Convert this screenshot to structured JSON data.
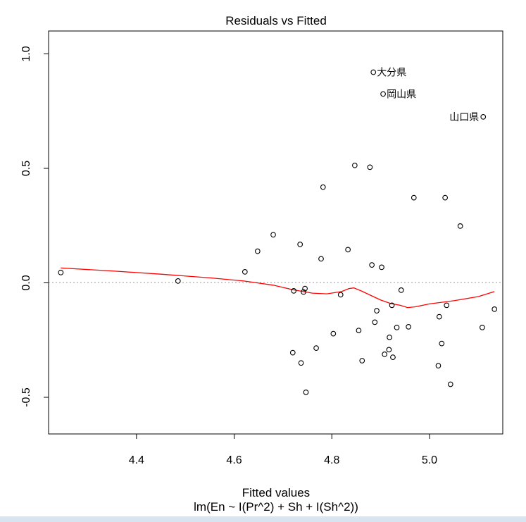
{
  "chart_data": {
    "type": "scatter",
    "title": "Residuals vs Fitted",
    "xlabel": "Fitted values",
    "subtitle": "lm(En ~ I(Pr^2) + Sh + I(Sh^2))",
    "ylabel": "",
    "xlim": [
      4.22,
      5.15
    ],
    "ylim": [
      -0.66,
      1.1
    ],
    "x_ticks": [
      "4.4",
      "4.6",
      "4.8",
      "5.0"
    ],
    "y_ticks": [
      "-0.5",
      "0.0",
      "0.5",
      "1.0"
    ],
    "reference_line": {
      "y": 0,
      "style": "dotted",
      "color": "#999999"
    },
    "point_color": "#000000",
    "smooth_color": "#ff0000",
    "points": [
      {
        "x": 4.245,
        "y": 0.045
      },
      {
        "x": 4.485,
        "y": 0.008
      },
      {
        "x": 4.622,
        "y": 0.048
      },
      {
        "x": 4.648,
        "y": 0.138
      },
      {
        "x": 4.68,
        "y": 0.21
      },
      {
        "x": 4.72,
        "y": -0.305
      },
      {
        "x": 4.722,
        "y": -0.035
      },
      {
        "x": 4.735,
        "y": 0.168
      },
      {
        "x": 4.737,
        "y": -0.35
      },
      {
        "x": 4.742,
        "y": -0.04
      },
      {
        "x": 4.745,
        "y": -0.025
      },
      {
        "x": 4.747,
        "y": -0.478
      },
      {
        "x": 4.768,
        "y": -0.285
      },
      {
        "x": 4.778,
        "y": 0.105
      },
      {
        "x": 4.782,
        "y": 0.418
      },
      {
        "x": 4.803,
        "y": -0.222
      },
      {
        "x": 4.818,
        "y": -0.052
      },
      {
        "x": 4.833,
        "y": 0.145
      },
      {
        "x": 4.847,
        "y": 0.513
      },
      {
        "x": 4.855,
        "y": -0.208
      },
      {
        "x": 4.862,
        "y": -0.34
      },
      {
        "x": 4.878,
        "y": 0.505
      },
      {
        "x": 4.882,
        "y": 0.078
      },
      {
        "x": 4.885,
        "y": 0.92,
        "label": "大分県",
        "label_side": "right"
      },
      {
        "x": 4.888,
        "y": -0.172
      },
      {
        "x": 4.892,
        "y": -0.122
      },
      {
        "x": 4.902,
        "y": 0.068
      },
      {
        "x": 4.905,
        "y": 0.825,
        "label": "岡山県",
        "label_side": "right"
      },
      {
        "x": 4.908,
        "y": -0.312
      },
      {
        "x": 4.917,
        "y": -0.292
      },
      {
        "x": 4.918,
        "y": -0.238
      },
      {
        "x": 4.923,
        "y": -0.098
      },
      {
        "x": 4.925,
        "y": -0.325
      },
      {
        "x": 4.933,
        "y": -0.195
      },
      {
        "x": 4.942,
        "y": -0.032
      },
      {
        "x": 4.957,
        "y": -0.192
      },
      {
        "x": 4.968,
        "y": 0.372
      },
      {
        "x": 5.018,
        "y": -0.362
      },
      {
        "x": 5.02,
        "y": -0.148
      },
      {
        "x": 5.025,
        "y": -0.265
      },
      {
        "x": 5.032,
        "y": 0.372
      },
      {
        "x": 5.035,
        "y": -0.098
      },
      {
        "x": 5.043,
        "y": -0.443
      },
      {
        "x": 5.063,
        "y": 0.248
      },
      {
        "x": 5.108,
        "y": -0.195
      },
      {
        "x": 5.11,
        "y": 0.725,
        "label": "山口県",
        "label_side": "left"
      },
      {
        "x": 5.133,
        "y": -0.115
      }
    ],
    "smooth_line": [
      [
        4.245,
        0.065
      ],
      [
        4.35,
        0.052
      ],
      [
        4.45,
        0.038
      ],
      [
        4.55,
        0.022
      ],
      [
        4.62,
        0.008
      ],
      [
        4.68,
        -0.01
      ],
      [
        4.72,
        -0.03
      ],
      [
        4.76,
        -0.045
      ],
      [
        4.79,
        -0.048
      ],
      [
        4.82,
        -0.038
      ],
      [
        4.835,
        -0.025
      ],
      [
        4.845,
        -0.022
      ],
      [
        4.86,
        -0.035
      ],
      [
        4.88,
        -0.055
      ],
      [
        4.9,
        -0.075
      ],
      [
        4.92,
        -0.09
      ],
      [
        4.94,
        -0.098
      ],
      [
        4.955,
        -0.108
      ],
      [
        4.97,
        -0.105
      ],
      [
        5.0,
        -0.092
      ],
      [
        5.05,
        -0.078
      ],
      [
        5.1,
        -0.06
      ],
      [
        5.133,
        -0.038
      ]
    ]
  }
}
